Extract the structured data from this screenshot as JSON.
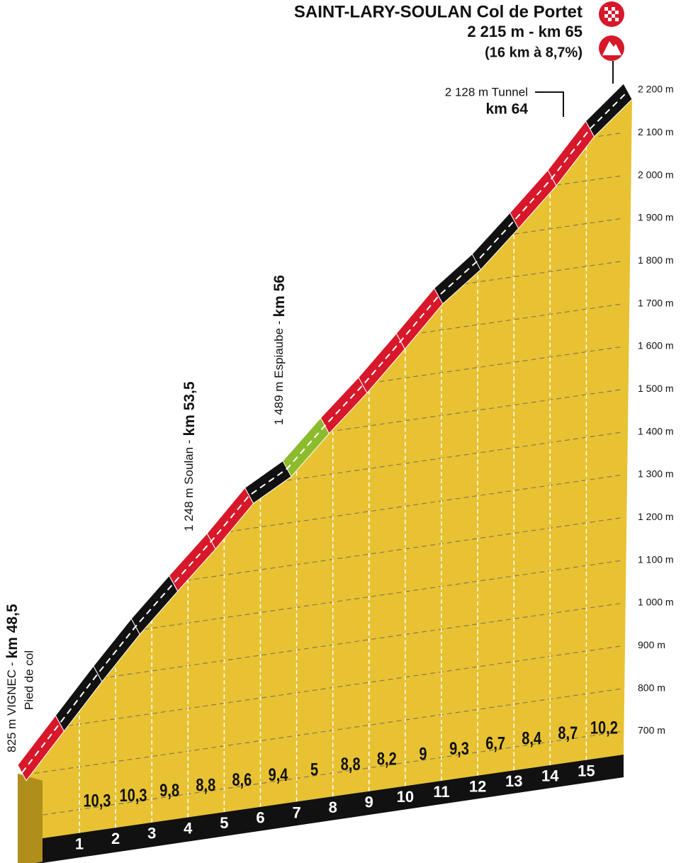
{
  "chart_data": {
    "type": "climb-profile",
    "title": "SAINT-LARY-SOULAN Col de Portet",
    "subtitle": "2 215 m - km 65",
    "note": "(16 km à 8,7%)",
    "annotations": [
      {
        "text": "2 128 m Tunnel",
        "km": "km 64"
      },
      {
        "text": "1 489 m Espiaube -",
        "km": "km 56"
      },
      {
        "text": "1 248 m Soulan -",
        "km": "km 53,5"
      },
      {
        "text": "825 m VIGNEC -",
        "km": "km 48,5",
        "sub": "Pied de col"
      }
    ],
    "categories": [
      "1",
      "2",
      "3",
      "4",
      "5",
      "6",
      "7",
      "8",
      "9",
      "10",
      "11",
      "12",
      "13",
      "14",
      "15"
    ],
    "values": [
      10.3,
      10.3,
      9.8,
      8.8,
      8.6,
      9.4,
      5,
      8.8,
      8.2,
      9,
      9.3,
      6.7,
      8.4,
      8.7,
      10.2
    ],
    "value_labels": [
      "10,3",
      "10,3",
      "9,8",
      "8,8",
      "8,6",
      "9,4",
      "5",
      "8,8",
      "8,2",
      "9",
      "9,3",
      "6,7",
      "8,4",
      "8,7",
      "10,2"
    ],
    "profile": {
      "x": [
        0,
        1,
        2,
        3,
        4,
        5,
        6,
        7,
        8,
        9,
        10,
        11,
        12,
        13,
        14,
        15,
        16
      ],
      "values": [
        825,
        928,
        1031,
        1129,
        1217,
        1303,
        1397,
        1447,
        1535,
        1617,
        1707,
        1800,
        1867,
        1951,
        2038,
        2140,
        2215
      ],
      "colors": [
        "#d7182a",
        "#111111",
        "#111111",
        "#111111",
        "#d7182a",
        "#d7182a",
        "#111111",
        "#8dbb2e",
        "#d7182a",
        "#d7182a",
        "#d7182a",
        "#111111",
        "#111111",
        "#d7182a",
        "#d7182a",
        "#111111"
      ]
    },
    "ylim": [
      700,
      2200
    ],
    "yticks": [
      {
        "value": 700,
        "label": "700 m"
      },
      {
        "value": 800,
        "label": "800 m"
      },
      {
        "value": 900,
        "label": "900 m"
      },
      {
        "value": 1000,
        "label": "1 000 m"
      },
      {
        "value": 1100,
        "label": "1 100 m"
      },
      {
        "value": 1200,
        "label": "1 200 m"
      },
      {
        "value": 1300,
        "label": "1 300 m"
      },
      {
        "value": 1400,
        "label": "1 400 m"
      },
      {
        "value": 1500,
        "label": "1 500 m"
      },
      {
        "value": 1600,
        "label": "1 600 m"
      },
      {
        "value": 1700,
        "label": "1 700 m"
      },
      {
        "value": 1800,
        "label": "1 800 m"
      },
      {
        "value": 1900,
        "label": "1 900 m"
      },
      {
        "value": 2000,
        "label": "2 000 m"
      },
      {
        "value": 2100,
        "label": "2 100 m"
      },
      {
        "value": 2200,
        "label": "2 200 m"
      }
    ],
    "grid": true
  }
}
